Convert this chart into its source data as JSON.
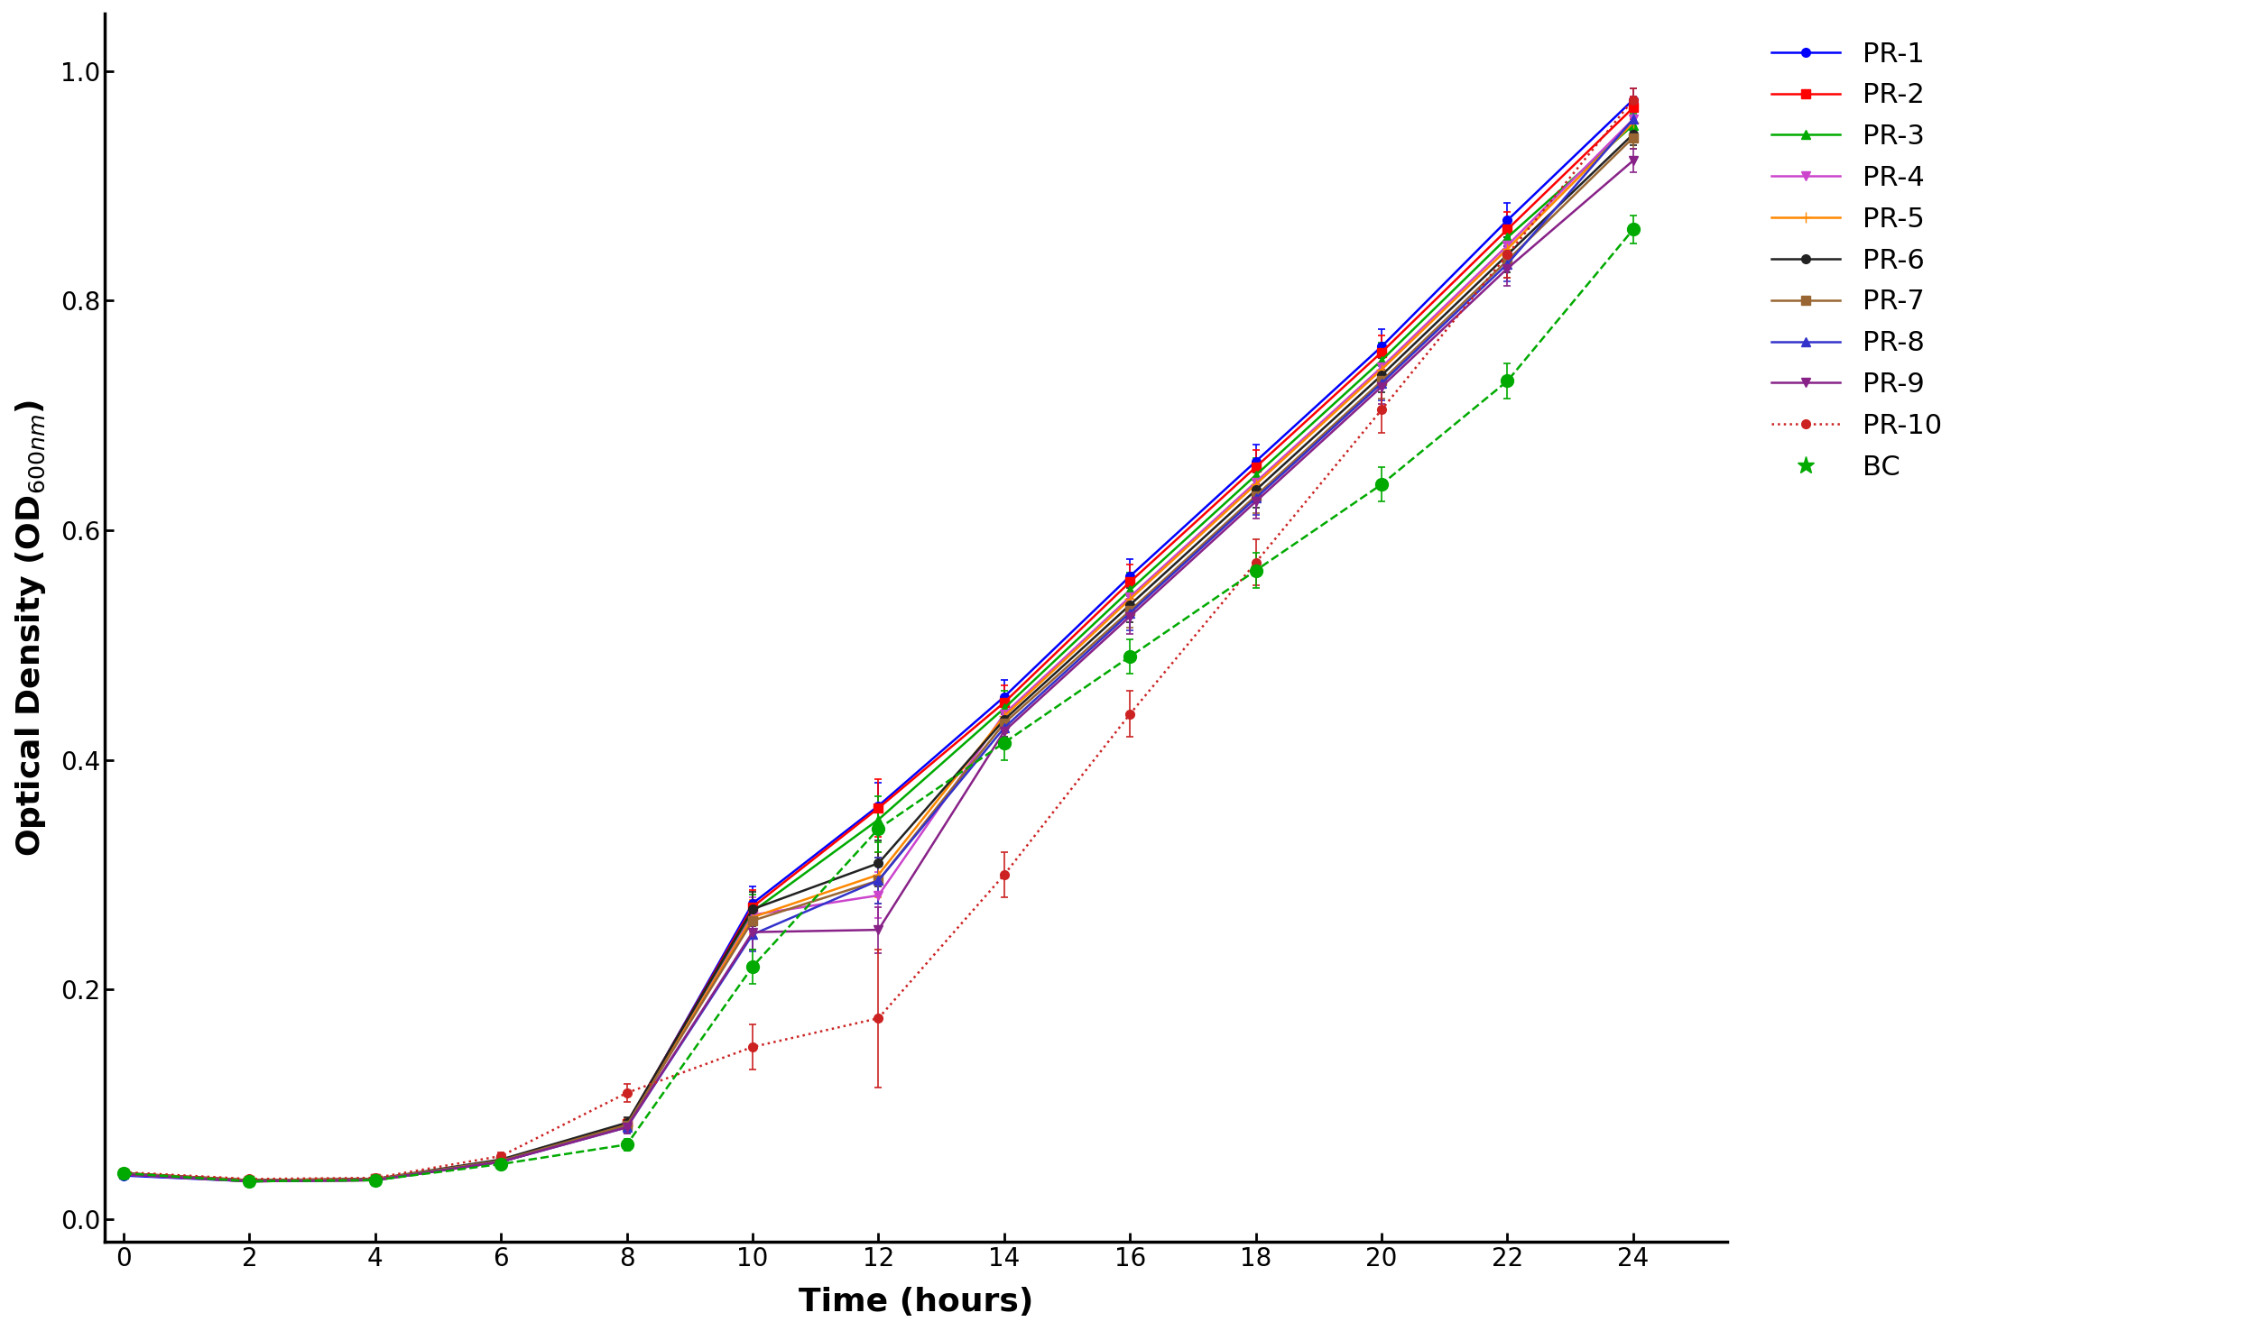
{
  "time_points": [
    0,
    2,
    4,
    6,
    8,
    10,
    12,
    14,
    16,
    18,
    20,
    22,
    24
  ],
  "series": {
    "PR-1": {
      "color": "#0000FF",
      "marker": "o",
      "linestyle": "-",
      "values": [
        0.038,
        0.033,
        0.035,
        0.05,
        0.082,
        0.275,
        0.36,
        0.455,
        0.56,
        0.66,
        0.76,
        0.87,
        0.975
      ],
      "errors": [
        0.003,
        0.002,
        0.002,
        0.003,
        0.005,
        0.015,
        0.02,
        0.015,
        0.015,
        0.015,
        0.015,
        0.015,
        0.01
      ]
    },
    "PR-2": {
      "color": "#FF0000",
      "marker": "s",
      "linestyle": "-",
      "values": [
        0.04,
        0.034,
        0.035,
        0.05,
        0.083,
        0.272,
        0.358,
        0.45,
        0.555,
        0.655,
        0.755,
        0.862,
        0.968
      ],
      "errors": [
        0.003,
        0.002,
        0.002,
        0.003,
        0.005,
        0.015,
        0.025,
        0.015,
        0.015,
        0.015,
        0.015,
        0.015,
        0.01
      ]
    },
    "PR-3": {
      "color": "#00AA00",
      "marker": "^",
      "linestyle": "-",
      "values": [
        0.04,
        0.033,
        0.034,
        0.05,
        0.082,
        0.268,
        0.348,
        0.445,
        0.548,
        0.648,
        0.748,
        0.855,
        0.953
      ],
      "errors": [
        0.003,
        0.002,
        0.002,
        0.003,
        0.005,
        0.015,
        0.02,
        0.015,
        0.015,
        0.015,
        0.015,
        0.015,
        0.01
      ]
    },
    "PR-4": {
      "color": "#CC44CC",
      "marker": "v",
      "linestyle": "-",
      "values": [
        0.039,
        0.033,
        0.034,
        0.05,
        0.081,
        0.265,
        0.282,
        0.44,
        0.542,
        0.642,
        0.742,
        0.848,
        0.958
      ],
      "errors": [
        0.003,
        0.002,
        0.002,
        0.003,
        0.005,
        0.015,
        0.02,
        0.015,
        0.015,
        0.015,
        0.015,
        0.015,
        0.01
      ]
    },
    "PR-5": {
      "color": "#FF8800",
      "marker": "+",
      "linestyle": "-",
      "values": [
        0.039,
        0.033,
        0.034,
        0.05,
        0.082,
        0.263,
        0.3,
        0.438,
        0.54,
        0.64,
        0.74,
        0.845,
        0.955
      ],
      "errors": [
        0.003,
        0.002,
        0.002,
        0.003,
        0.005,
        0.015,
        0.02,
        0.015,
        0.015,
        0.015,
        0.015,
        0.015,
        0.01
      ]
    },
    "PR-6": {
      "color": "#222222",
      "marker": "o",
      "linestyle": "-",
      "values": [
        0.04,
        0.034,
        0.035,
        0.052,
        0.084,
        0.27,
        0.31,
        0.435,
        0.535,
        0.635,
        0.735,
        0.84,
        0.945
      ],
      "errors": [
        0.003,
        0.002,
        0.002,
        0.003,
        0.005,
        0.015,
        0.02,
        0.015,
        0.015,
        0.015,
        0.015,
        0.015,
        0.01
      ]
    },
    "PR-7": {
      "color": "#996633",
      "marker": "s",
      "linestyle": "-",
      "values": [
        0.04,
        0.034,
        0.035,
        0.051,
        0.082,
        0.26,
        0.295,
        0.432,
        0.53,
        0.63,
        0.73,
        0.835,
        0.942
      ],
      "errors": [
        0.003,
        0.002,
        0.002,
        0.003,
        0.005,
        0.015,
        0.02,
        0.015,
        0.015,
        0.015,
        0.015,
        0.015,
        0.01
      ]
    },
    "PR-8": {
      "color": "#3333CC",
      "marker": "^",
      "linestyle": "-",
      "values": [
        0.039,
        0.033,
        0.034,
        0.05,
        0.08,
        0.248,
        0.295,
        0.428,
        0.528,
        0.628,
        0.728,
        0.832,
        0.958
      ],
      "errors": [
        0.003,
        0.002,
        0.002,
        0.003,
        0.005,
        0.015,
        0.02,
        0.015,
        0.015,
        0.015,
        0.015,
        0.015,
        0.01
      ]
    },
    "PR-9": {
      "color": "#882288",
      "marker": "v",
      "linestyle": "-",
      "values": [
        0.039,
        0.033,
        0.034,
        0.05,
        0.08,
        0.25,
        0.252,
        0.425,
        0.525,
        0.625,
        0.725,
        0.828,
        0.922
      ],
      "errors": [
        0.003,
        0.002,
        0.002,
        0.003,
        0.005,
        0.015,
        0.02,
        0.015,
        0.015,
        0.015,
        0.015,
        0.015,
        0.01
      ]
    },
    "PR-10": {
      "color": "#CC2222",
      "marker": "o",
      "linestyle": ":",
      "values": [
        0.041,
        0.035,
        0.036,
        0.055,
        0.11,
        0.15,
        0.175,
        0.3,
        0.44,
        0.572,
        0.705,
        0.84,
        0.975
      ],
      "errors": [
        0.003,
        0.002,
        0.002,
        0.003,
        0.008,
        0.02,
        0.06,
        0.02,
        0.02,
        0.02,
        0.02,
        0.02,
        0.01
      ]
    },
    "BC": {
      "color": "#00AA00",
      "marker": "o",
      "linestyle": "--",
      "values": [
        0.04,
        0.033,
        0.034,
        0.048,
        0.065,
        0.22,
        0.34,
        0.415,
        0.49,
        0.565,
        0.64,
        0.73,
        0.862
      ],
      "errors": [
        0.003,
        0.002,
        0.002,
        0.003,
        0.005,
        0.015,
        0.02,
        0.015,
        0.015,
        0.015,
        0.015,
        0.015,
        0.012
      ]
    }
  },
  "series_order": [
    "PR-1",
    "PR-2",
    "PR-3",
    "PR-4",
    "PR-5",
    "PR-6",
    "PR-7",
    "PR-8",
    "PR-9",
    "PR-10",
    "BC"
  ],
  "xlabel": "Time (hours)",
  "ylabel_full": "Optical Density (OD$_{600nm}$)",
  "xlim": [
    -0.3,
    25.5
  ],
  "ylim": [
    -0.02,
    1.05
  ],
  "xticks": [
    0,
    2,
    4,
    6,
    8,
    10,
    12,
    14,
    16,
    18,
    20,
    22,
    24
  ],
  "yticks": [
    0.0,
    0.2,
    0.4,
    0.6,
    0.8,
    1.0
  ],
  "background_color": "#FFFFFF",
  "linewidth": 1.8,
  "capsize": 3,
  "legend_fontsize": 22,
  "axis_label_fontsize": 26,
  "tick_fontsize": 20
}
